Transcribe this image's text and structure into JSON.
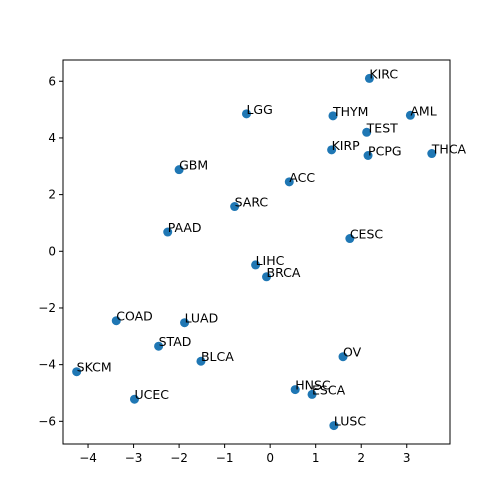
{
  "chart_data": {
    "type": "scatter",
    "title": "",
    "xlabel": "",
    "ylabel": "",
    "xlim": [
      -4.55,
      3.95
    ],
    "ylim": [
      -6.8,
      6.75
    ],
    "grid": false,
    "color": "#1f77b4",
    "x_ticks": [
      -4,
      -3,
      -2,
      -1,
      0,
      1,
      2,
      3
    ],
    "y_ticks": [
      -6,
      -4,
      -2,
      0,
      2,
      4,
      6
    ],
    "points": [
      {
        "label": "KIRC",
        "x": 2.18,
        "y": 6.1
      },
      {
        "label": "LGG",
        "x": -0.52,
        "y": 4.85
      },
      {
        "label": "THYM",
        "x": 1.38,
        "y": 4.78
      },
      {
        "label": "AML",
        "x": 3.08,
        "y": 4.8
      },
      {
        "label": "TEST",
        "x": 2.12,
        "y": 4.2
      },
      {
        "label": "THCA",
        "x": 3.55,
        "y": 3.45
      },
      {
        "label": "KIRP",
        "x": 1.35,
        "y": 3.58
      },
      {
        "label": "PCPG",
        "x": 2.15,
        "y": 3.38
      },
      {
        "label": "GBM",
        "x": -2.0,
        "y": 2.88
      },
      {
        "label": "ACC",
        "x": 0.42,
        "y": 2.45
      },
      {
        "label": "SARC",
        "x": -0.78,
        "y": 1.58
      },
      {
        "label": "PAAD",
        "x": -2.25,
        "y": 0.68
      },
      {
        "label": "CESC",
        "x": 1.75,
        "y": 0.45
      },
      {
        "label": "LIHC",
        "x": -0.32,
        "y": -0.48
      },
      {
        "label": "BRCA",
        "x": -0.08,
        "y": -0.9
      },
      {
        "label": "COAD",
        "x": -3.38,
        "y": -2.45
      },
      {
        "label": "LUAD",
        "x": -1.88,
        "y": -2.52
      },
      {
        "label": "STAD",
        "x": -2.45,
        "y": -3.35
      },
      {
        "label": "BLCA",
        "x": -1.52,
        "y": -3.88
      },
      {
        "label": "OV",
        "x": 1.6,
        "y": -3.72
      },
      {
        "label": "SKCM",
        "x": -4.25,
        "y": -4.25
      },
      {
        "label": "UCEC",
        "x": -2.98,
        "y": -5.22
      },
      {
        "label": "HNSC",
        "x": 0.55,
        "y": -4.88
      },
      {
        "label": "ESCA",
        "x": 0.92,
        "y": -5.05
      },
      {
        "label": "LUSC",
        "x": 1.4,
        "y": -6.15
      }
    ]
  }
}
